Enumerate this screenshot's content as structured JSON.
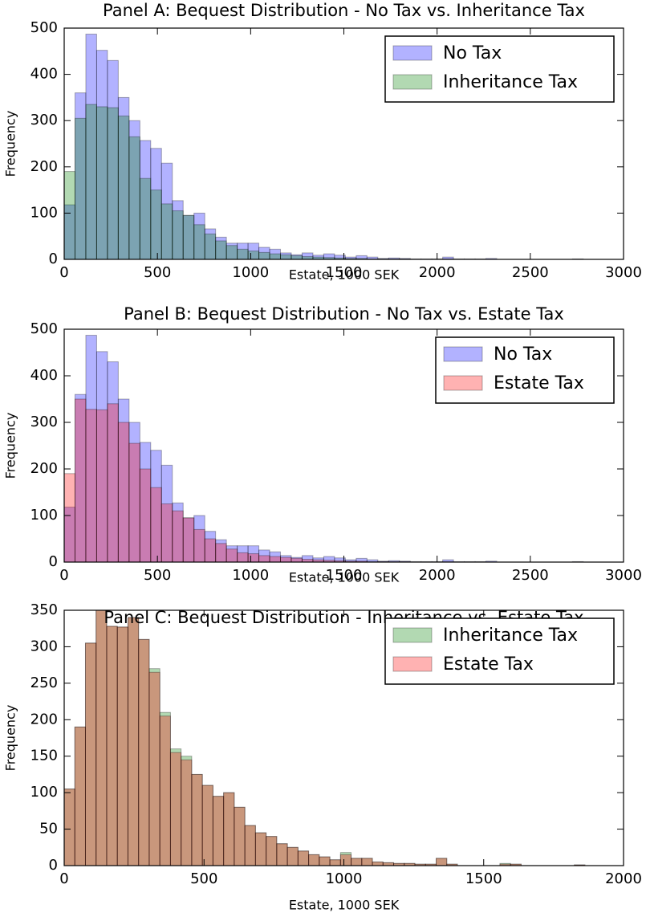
{
  "chart_data": [
    {
      "type": "histogram",
      "title": "Panel A: Bequest Distribution - No Tax vs. Inheritance Tax",
      "xlabel": "Estate, 1000 SEK",
      "ylabel": "Frequency",
      "bins": [
        0,
        58,
        116,
        174,
        232,
        290,
        348,
        406,
        464,
        522,
        580,
        638,
        696,
        754,
        812,
        870,
        928,
        986,
        1044,
        1102,
        1160,
        1218,
        1276,
        1334,
        1392,
        1450,
        1508,
        1566,
        1624,
        1682,
        1740,
        1798,
        1856,
        1914,
        1972,
        2030,
        2088,
        2146,
        2204,
        2262,
        2320,
        2378,
        2436,
        2494,
        2552,
        2610,
        2668,
        2726,
        2784,
        2842,
        2900
      ],
      "series": [
        {
          "name": "No Tax",
          "color": "#0000ff",
          "values": [
            118,
            360,
            487,
            452,
            430,
            350,
            300,
            257,
            240,
            208,
            127,
            95,
            100,
            66,
            48,
            35,
            35,
            35,
            26,
            22,
            14,
            10,
            14,
            9,
            12,
            9,
            5,
            8,
            5,
            2,
            3,
            2,
            1,
            1,
            1,
            5,
            1,
            1,
            1,
            2,
            0,
            0,
            0,
            0,
            0,
            0,
            0,
            1,
            0,
            0
          ]
        },
        {
          "name": "Inheritance Tax",
          "color": "#008000",
          "values": [
            190,
            305,
            335,
            330,
            328,
            310,
            265,
            175,
            150,
            120,
            105,
            95,
            75,
            55,
            40,
            30,
            22,
            18,
            15,
            12,
            10,
            8,
            6,
            5,
            4,
            3,
            2,
            2,
            1,
            1,
            1,
            1,
            0,
            0,
            0,
            1,
            0,
            0,
            0,
            0,
            0,
            0,
            0,
            0,
            0,
            0,
            0,
            0,
            0,
            0
          ]
        }
      ],
      "opacity": 0.3,
      "xlim": [
        0,
        3000
      ],
      "xticks": [
        0,
        500,
        1000,
        1500,
        2000,
        2500,
        3000
      ],
      "ylim": [
        0,
        500
      ],
      "yticks": [
        0,
        100,
        200,
        300,
        400,
        500
      ],
      "legend": "upper right"
    },
    {
      "type": "histogram",
      "title": "Panel B: Bequest Distribution - No Tax vs. Estate Tax",
      "xlabel": "Estate, 1000 SEK",
      "ylabel": "Frequency",
      "bins": [
        0,
        58,
        116,
        174,
        232,
        290,
        348,
        406,
        464,
        522,
        580,
        638,
        696,
        754,
        812,
        870,
        928,
        986,
        1044,
        1102,
        1160,
        1218,
        1276,
        1334,
        1392,
        1450,
        1508,
        1566,
        1624,
        1682,
        1740,
        1798,
        1856,
        1914,
        1972,
        2030,
        2088,
        2146,
        2204,
        2262,
        2320,
        2378,
        2436,
        2494,
        2552,
        2610,
        2668,
        2726,
        2784,
        2842,
        2900
      ],
      "series": [
        {
          "name": "No Tax",
          "color": "#0000ff",
          "values": [
            118,
            360,
            487,
            452,
            430,
            350,
            300,
            257,
            240,
            208,
            127,
            95,
            100,
            66,
            48,
            35,
            35,
            35,
            26,
            22,
            14,
            10,
            14,
            9,
            12,
            9,
            5,
            8,
            5,
            2,
            3,
            2,
            1,
            1,
            1,
            5,
            1,
            1,
            1,
            2,
            0,
            0,
            0,
            0,
            0,
            0,
            0,
            1,
            0,
            0
          ]
        },
        {
          "name": "Estate Tax",
          "color": "#ff0000",
          "values": [
            190,
            350,
            328,
            327,
            340,
            300,
            255,
            200,
            160,
            125,
            110,
            95,
            70,
            50,
            40,
            28,
            20,
            18,
            14,
            12,
            10,
            8,
            6,
            5,
            4,
            3,
            2,
            2,
            1,
            1,
            1,
            1,
            0,
            0,
            0,
            1,
            0,
            0,
            0,
            0,
            0,
            0,
            0,
            0,
            0,
            0,
            0,
            0,
            0,
            0
          ]
        }
      ],
      "opacity": 0.3,
      "xlim": [
        0,
        3000
      ],
      "xticks": [
        0,
        500,
        1000,
        1500,
        2000,
        2500,
        3000
      ],
      "ylim": [
        0,
        500
      ],
      "yticks": [
        0,
        100,
        200,
        300,
        400,
        500
      ],
      "legend": "upper right"
    },
    {
      "type": "histogram",
      "title": "Panel C: Bequest Distribution - Inheritance vs. Estate Tax",
      "xlabel": "Estate, 1000 SEK",
      "ylabel": "Frequency",
      "bins": [
        0,
        38,
        76,
        114,
        152,
        190,
        228,
        266,
        304,
        342,
        380,
        418,
        456,
        494,
        532,
        570,
        608,
        646,
        684,
        722,
        760,
        798,
        836,
        874,
        912,
        950,
        988,
        1026,
        1064,
        1102,
        1140,
        1178,
        1216,
        1254,
        1292,
        1330,
        1368,
        1406,
        1444,
        1482,
        1520,
        1558,
        1596,
        1634,
        1672,
        1710,
        1748,
        1786,
        1824,
        1862,
        1900
      ],
      "series": [
        {
          "name": "Inheritance Tax",
          "color": "#008000",
          "values": [
            105,
            190,
            305,
            350,
            328,
            327,
            340,
            310,
            270,
            210,
            160,
            150,
            125,
            110,
            95,
            100,
            80,
            55,
            45,
            40,
            30,
            25,
            20,
            15,
            12,
            8,
            18,
            10,
            10,
            5,
            4,
            3,
            3,
            2,
            2,
            10,
            2,
            0,
            0,
            0,
            0,
            3,
            2,
            0,
            0,
            0,
            0,
            0,
            1,
            0
          ]
        },
        {
          "name": "Estate Tax",
          "color": "#ff0000",
          "values": [
            105,
            190,
            305,
            350,
            328,
            327,
            340,
            310,
            265,
            205,
            155,
            145,
            125,
            110,
            95,
            100,
            80,
            55,
            45,
            40,
            30,
            25,
            20,
            15,
            12,
            8,
            15,
            10,
            10,
            5,
            4,
            3,
            3,
            2,
            2,
            10,
            2,
            0,
            0,
            0,
            0,
            2,
            2,
            0,
            0,
            0,
            0,
            0,
            1,
            0
          ]
        }
      ],
      "opacity": 0.3,
      "xlim": [
        0,
        2000
      ],
      "xticks": [
        0,
        500,
        1000,
        1500,
        2000
      ],
      "ylim": [
        0,
        350
      ],
      "yticks": [
        0,
        50,
        100,
        150,
        200,
        250,
        300,
        350
      ],
      "legend": "upper right"
    }
  ]
}
